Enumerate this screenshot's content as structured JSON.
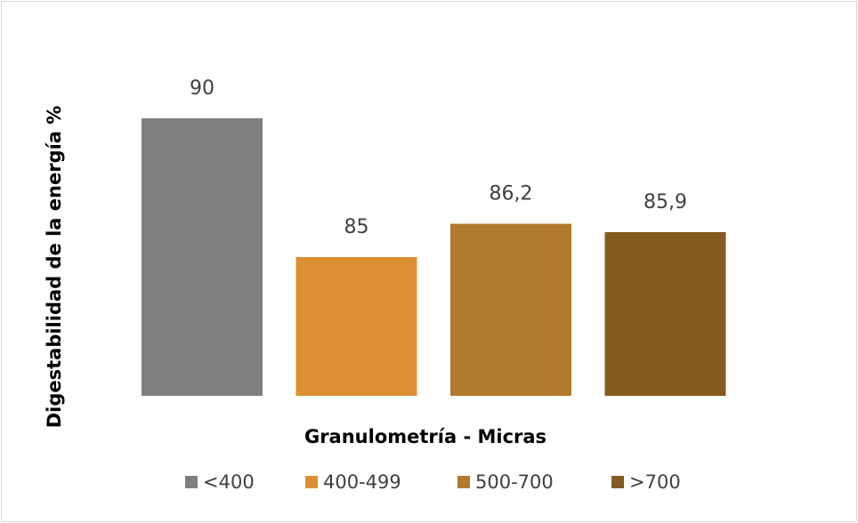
{
  "chart_data": {
    "type": "bar",
    "categories": [
      "<400",
      "400-499",
      "500-700",
      ">700"
    ],
    "values": [
      90,
      85,
      86.2,
      85.9
    ],
    "value_labels": [
      "90",
      "85",
      "86,2",
      "85,9"
    ],
    "colors": [
      "#7f7f7f",
      "#dd9033",
      "#b37a2d",
      "#835a20"
    ],
    "xlabel": "Granulometría - Micras",
    "ylabel": "Digestabilidad de la energía %",
    "ylim": [
      80,
      91
    ],
    "grid": false,
    "legend_position": "bottom"
  }
}
